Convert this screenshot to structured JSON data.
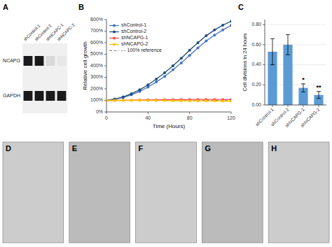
{
  "chart_data": [
    {
      "type": "heatmap",
      "title": "A",
      "categories": [
        "shControl-1",
        "shControl-2",
        "shNCAPC-1",
        "shNCAPC-2"
      ],
      "series": [
        {
          "name": "NCAPG",
          "values": [
            0.9,
            0.9,
            0.15,
            0.1
          ]
        },
        {
          "name": "GAPDH",
          "values": [
            0.9,
            0.9,
            0.9,
            0.9
          ]
        }
      ]
    },
    {
      "type": "line",
      "title": "B",
      "x_label": "Time (Hours)",
      "y_label": "Relative cell growth",
      "x": [
        0,
        8,
        16,
        24,
        32,
        40,
        48,
        56,
        64,
        72,
        80,
        88,
        96,
        104,
        112,
        120
      ],
      "series": [
        {
          "name": "shControl-1",
          "color": "#4472C4",
          "marker": "circle",
          "line_style": "solid",
          "values": [
            100,
            110,
            125,
            148,
            178,
            215,
            260,
            308,
            365,
            425,
            490,
            555,
            615,
            665,
            710,
            750
          ]
        },
        {
          "name": "shControl-2",
          "color": "#1F4E79",
          "marker": "circle",
          "line_style": "solid",
          "values": [
            100,
            112,
            130,
            158,
            192,
            235,
            285,
            340,
            400,
            465,
            535,
            600,
            660,
            710,
            752,
            785
          ]
        },
        {
          "name": "shNCAPG-1",
          "color": "#FF4B4B",
          "marker": "circle",
          "line_style": "solid",
          "values": [
            100,
            100,
            101,
            102,
            103,
            104,
            105,
            106,
            106,
            107,
            107,
            108,
            108,
            108,
            108,
            108
          ]
        },
        {
          "name": "shNCAPG-2",
          "color": "#FFC000",
          "marker": "circle",
          "line_style": "solid",
          "values": [
            100,
            100,
            100,
            100,
            100,
            99,
            99,
            98,
            97,
            97,
            96,
            96,
            95,
            95,
            94,
            93
          ]
        }
      ],
      "reference": {
        "value": 100,
        "label": "- - 100% reference",
        "color": "gray",
        "line_style": "dashed"
      },
      "xlim": [
        0,
        120
      ],
      "xticks": [
        0,
        40,
        80,
        120
      ],
      "ylim": [
        0,
        800
      ],
      "yticks": [
        {
          "value": 0,
          "label": "0%"
        },
        {
          "value": 100,
          "label": "100%"
        },
        {
          "value": 200,
          "label": "200%"
        },
        {
          "value": 300,
          "label": "300%"
        },
        {
          "value": 400,
          "label": "400%"
        },
        {
          "value": 500,
          "label": "500%"
        },
        {
          "value": 600,
          "label": "600%"
        },
        {
          "value": 700,
          "label": "700%"
        },
        {
          "value": 800,
          "label": "800%"
        }
      ],
      "legend": "upper-left",
      "grid": false
    },
    {
      "type": "bar",
      "title": "C",
      "y_label": "Cell divisions in 24 hours",
      "categories": [
        "shControl-1",
        "shControl-2",
        "shNCAPG-1",
        "shNCAPG-2"
      ],
      "values": [
        0.53,
        0.6,
        0.17,
        0.1
      ],
      "errors": [
        0.13,
        0.1,
        0.04,
        0.035
      ],
      "color": "#5B9BD5",
      "ylim": [
        0,
        0.85
      ],
      "yticks": [
        {
          "value": 0.0,
          "label": "0.00"
        },
        {
          "value": 0.2,
          "label": "0.20"
        },
        {
          "value": 0.4,
          "label": "0.40"
        },
        {
          "value": 0.6,
          "label": "0.60"
        },
        {
          "value": 0.8,
          "label": "0.80"
        }
      ],
      "grid": true,
      "annotations": [
        {
          "category": "shNCAPG-1",
          "text": "*"
        },
        {
          "category": "shNCAPG-2",
          "text": "**"
        }
      ]
    },
    {
      "type": "image",
      "title": "D",
      "color": "#CCCCCC"
    },
    {
      "type": "image",
      "title": "E",
      "color": "#BBBBBB"
    },
    {
      "type": "image",
      "title": "F",
      "color": "#CCCCCC"
    },
    {
      "type": "image",
      "title": "G",
      "color": "#BBBBBB"
    },
    {
      "type": "image",
      "title": "H",
      "color": "#CCCCCC"
    }
  ]
}
